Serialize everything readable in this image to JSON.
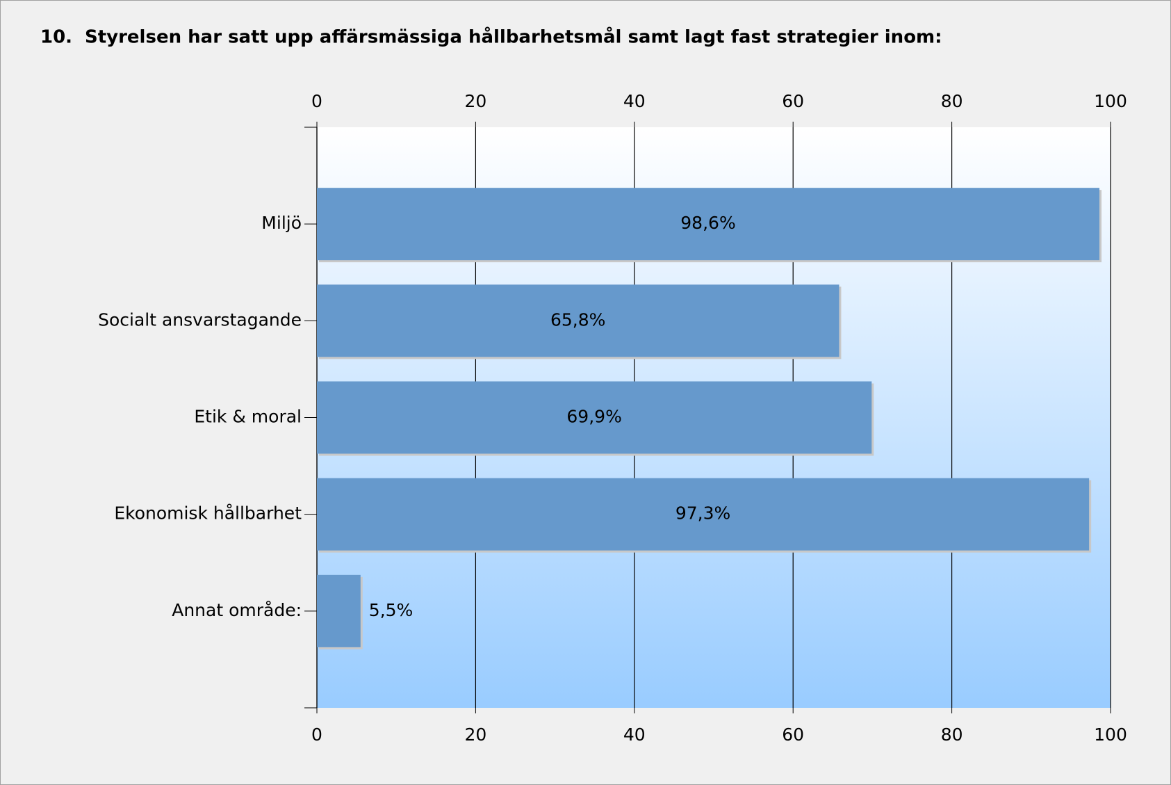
{
  "chart_data": {
    "type": "bar",
    "orientation": "horizontal",
    "number": "10.",
    "title": "Styrelsen har satt upp affärsmässiga hållbarhetsmål samt lagt fast strategier inom:",
    "categories": [
      "Miljö",
      "Socialt ansvarstagande",
      "Etik & moral",
      "Ekonomisk hållbarhet",
      "Annat område:"
    ],
    "values": [
      98.6,
      65.8,
      69.9,
      97.3,
      5.5
    ],
    "value_labels": [
      "98,6%",
      "65,8%",
      "69,9%",
      "97,3%",
      "5,5%"
    ],
    "color": "#6699cc",
    "xlim": [
      0,
      100
    ],
    "xticks": [
      0,
      20,
      40,
      60,
      80,
      100
    ],
    "grid": true
  }
}
